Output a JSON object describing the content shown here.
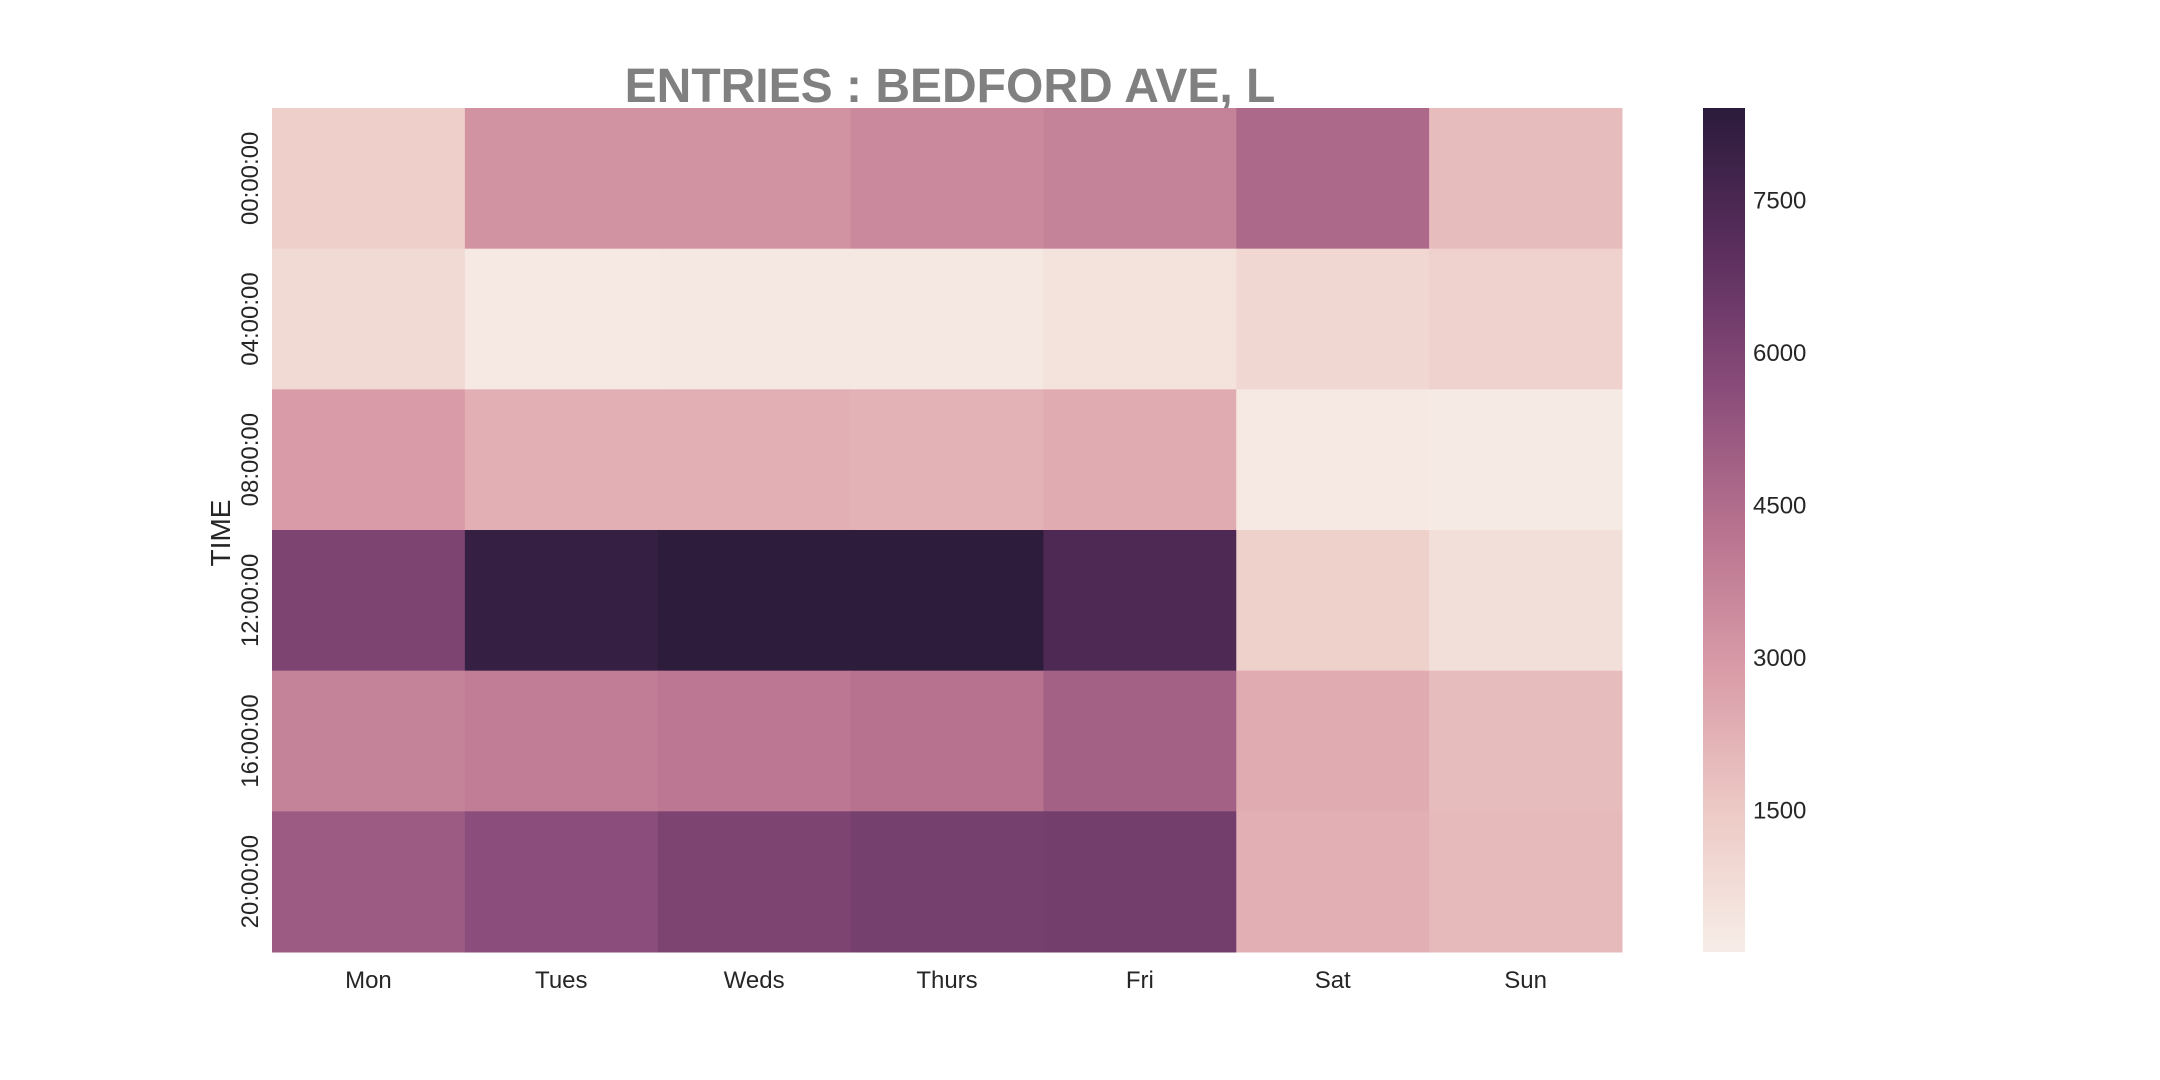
{
  "chart_data": {
    "type": "heatmap",
    "title": "ENTRIES : BEDFORD AVE, L",
    "xlabel": "",
    "ylabel": "TIME",
    "x_categories": [
      "Mon",
      "Tues",
      "Weds",
      "Thurs",
      "Fri",
      "Sat",
      "Sun"
    ],
    "y_categories": [
      "00:00:00",
      "04:00:00",
      "08:00:00",
      "12:00:00",
      "16:00:00",
      "20:00:00"
    ],
    "values": [
      [
        1300,
        3200,
        3200,
        3500,
        3700,
        4600,
        1900
      ],
      [
        900,
        250,
        350,
        350,
        550,
        950,
        1150
      ],
      [
        2900,
        2300,
        2300,
        2200,
        2400,
        250,
        200
      ],
      [
        6000,
        8100,
        8300,
        8300,
        7400,
        1200,
        650
      ],
      [
        3700,
        3900,
        4100,
        4300,
        4900,
        2400,
        1900
      ],
      [
        5100,
        5600,
        6000,
        6200,
        6300,
        2300,
        2000
      ]
    ],
    "colorbar": {
      "ticks": [
        1500,
        3000,
        4500,
        6000,
        7500
      ],
      "range": [
        100,
        8400
      ],
      "cmap_stops": [
        "#f7ede8",
        "#edcac5",
        "#d99ca8",
        "#b8738f",
        "#8a4c7a",
        "#5a2e5d",
        "#2b1b3b"
      ]
    }
  }
}
